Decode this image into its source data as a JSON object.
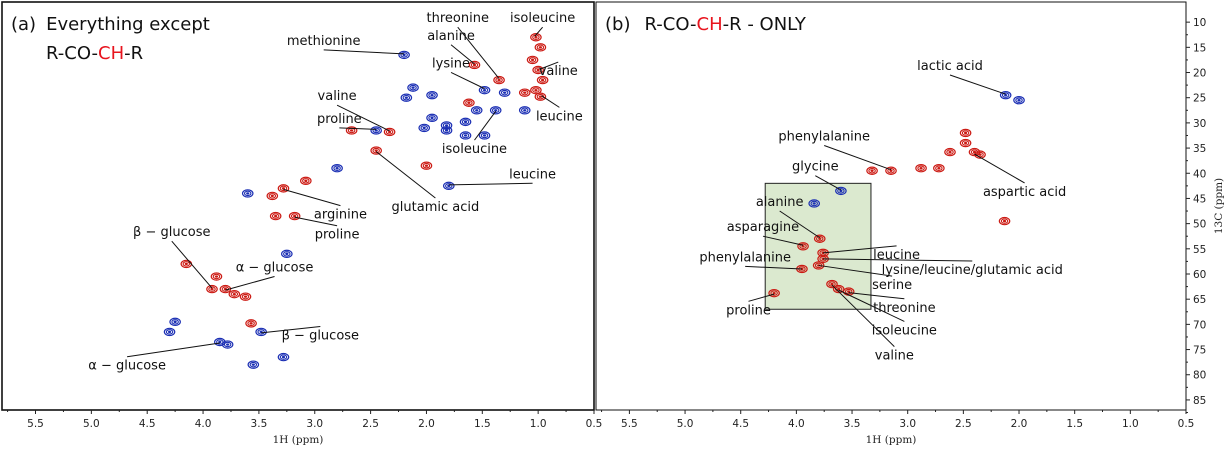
{
  "chart_data": [
    {
      "type": "scatter",
      "panel_label": "(a)",
      "title_line1": "Everything except",
      "title_parts": [
        "R-CO-",
        "CH",
        "-R"
      ],
      "xlabel": "1H (ppm)",
      "ylabel": "",
      "xlim": [
        5.8,
        0.5
      ],
      "ylim": [
        6,
        87
      ],
      "xticks": [
        5.5,
        5.0,
        4.5,
        4.0,
        3.5,
        3.0,
        2.5,
        2.0,
        1.5,
        1.0,
        0.5
      ],
      "colors": {
        "positive": "#cc1b14",
        "negative": "#1b2fb4",
        "highlight": "#e8141e"
      },
      "peaks": [
        {
          "x": 2.2,
          "y": 16.5,
          "sign": "negative"
        },
        {
          "x": 1.57,
          "y": 18.5,
          "sign": "positive"
        },
        {
          "x": 1.48,
          "y": 23.5,
          "sign": "negative"
        },
        {
          "x": 1.35,
          "y": 21.5,
          "sign": "positive"
        },
        {
          "x": 1.02,
          "y": 13.0,
          "sign": "positive"
        },
        {
          "x": 0.98,
          "y": 15.0,
          "sign": "positive"
        },
        {
          "x": 1.05,
          "y": 17.5,
          "sign": "positive"
        },
        {
          "x": 1.0,
          "y": 19.5,
          "sign": "positive"
        },
        {
          "x": 0.96,
          "y": 21.5,
          "sign": "positive"
        },
        {
          "x": 1.02,
          "y": 23.5,
          "sign": "positive"
        },
        {
          "x": 0.98,
          "y": 24.8,
          "sign": "positive"
        },
        {
          "x": 1.3,
          "y": 24.0,
          "sign": "negative"
        },
        {
          "x": 1.12,
          "y": 24.0,
          "sign": "positive"
        },
        {
          "x": 2.18,
          "y": 25.0,
          "sign": "negative"
        },
        {
          "x": 2.12,
          "y": 23.0,
          "sign": "negative"
        },
        {
          "x": 1.95,
          "y": 24.5,
          "sign": "negative"
        },
        {
          "x": 1.62,
          "y": 26.0,
          "sign": "positive"
        },
        {
          "x": 1.55,
          "y": 27.5,
          "sign": "negative"
        },
        {
          "x": 1.38,
          "y": 27.5,
          "sign": "negative"
        },
        {
          "x": 1.12,
          "y": 27.5,
          "sign": "negative"
        },
        {
          "x": 1.95,
          "y": 29.0,
          "sign": "negative"
        },
        {
          "x": 2.02,
          "y": 31.0,
          "sign": "negative"
        },
        {
          "x": 1.82,
          "y": 31.5,
          "sign": "negative"
        },
        {
          "x": 1.82,
          "y": 30.5,
          "sign": "negative"
        },
        {
          "x": 1.65,
          "y": 29.8,
          "sign": "negative"
        },
        {
          "x": 1.65,
          "y": 32.5,
          "sign": "negative"
        },
        {
          "x": 1.48,
          "y": 32.5,
          "sign": "negative"
        },
        {
          "x": 2.45,
          "y": 31.5,
          "sign": "negative"
        },
        {
          "x": 2.33,
          "y": 31.8,
          "sign": "positive"
        },
        {
          "x": 2.67,
          "y": 31.5,
          "sign": "positive"
        },
        {
          "x": 2.45,
          "y": 35.5,
          "sign": "positive"
        },
        {
          "x": 2.0,
          "y": 38.5,
          "sign": "positive"
        },
        {
          "x": 1.8,
          "y": 42.5,
          "sign": "negative"
        },
        {
          "x": 2.8,
          "y": 39.0,
          "sign": "negative"
        },
        {
          "x": 3.08,
          "y": 41.5,
          "sign": "positive"
        },
        {
          "x": 3.28,
          "y": 43.0,
          "sign": "positive"
        },
        {
          "x": 3.38,
          "y": 44.5,
          "sign": "positive"
        },
        {
          "x": 3.18,
          "y": 48.5,
          "sign": "positive"
        },
        {
          "x": 3.35,
          "y": 48.5,
          "sign": "positive"
        },
        {
          "x": 3.6,
          "y": 44.0,
          "sign": "negative"
        },
        {
          "x": 3.25,
          "y": 56.0,
          "sign": "negative"
        },
        {
          "x": 4.15,
          "y": 58.0,
          "sign": "positive"
        },
        {
          "x": 3.92,
          "y": 63.0,
          "sign": "positive"
        },
        {
          "x": 3.8,
          "y": 63.0,
          "sign": "positive"
        },
        {
          "x": 3.88,
          "y": 60.5,
          "sign": "positive"
        },
        {
          "x": 3.72,
          "y": 64.0,
          "sign": "positive"
        },
        {
          "x": 3.62,
          "y": 64.5,
          "sign": "positive"
        },
        {
          "x": 3.57,
          "y": 69.8,
          "sign": "positive"
        },
        {
          "x": 4.25,
          "y": 69.5,
          "sign": "negative"
        },
        {
          "x": 4.3,
          "y": 71.5,
          "sign": "negative"
        },
        {
          "x": 3.85,
          "y": 73.5,
          "sign": "negative"
        },
        {
          "x": 3.78,
          "y": 74.0,
          "sign": "negative"
        },
        {
          "x": 3.48,
          "y": 71.5,
          "sign": "negative"
        },
        {
          "x": 3.28,
          "y": 76.5,
          "sign": "negative"
        },
        {
          "x": 3.55,
          "y": 78.0,
          "sign": "negative"
        }
      ],
      "annotations": [
        {
          "text": "methionine",
          "lx": 2.92,
          "ly": 14.5,
          "anchor": "middle",
          "tx": 2.2,
          "ty": 16.3
        },
        {
          "text": "threonine",
          "lx": 1.72,
          "ly": 10.0,
          "anchor": "middle",
          "tx": 1.35,
          "ty": 21.2
        },
        {
          "text": "alanine",
          "lx": 1.78,
          "ly": 13.5,
          "anchor": "middle",
          "tx": 1.57,
          "ty": 18.3
        },
        {
          "text": "isoleucine",
          "lx": 0.96,
          "ly": 10.0,
          "anchor": "middle",
          "tx": 1.03,
          "ty": 12.8
        },
        {
          "text": "lysine",
          "lx": 1.78,
          "ly": 19.0,
          "anchor": "middle",
          "tx": 1.48,
          "ty": 23.2
        },
        {
          "text": "valine",
          "lx": 0.82,
          "ly": 20.5,
          "anchor": "middle",
          "tx": 0.98,
          "ty": 19.3
        },
        {
          "text": "leucine",
          "lx": 0.81,
          "ly": 29.5,
          "anchor": "middle",
          "tx": 0.97,
          "ty": 24.6
        },
        {
          "text": "valine",
          "lx": 2.8,
          "ly": 25.5,
          "anchor": "middle",
          "tx": 2.33,
          "ty": 31.6
        },
        {
          "text": "proline",
          "lx": 2.78,
          "ly": 30.0,
          "anchor": "middle",
          "tx": 2.45,
          "ty": 31.3
        },
        {
          "text": "isoleucine",
          "lx": 1.57,
          "ly": 36.0,
          "anchor": "middle",
          "tx": 1.38,
          "ty": 27.7
        },
        {
          "text": "leucine",
          "lx": 1.05,
          "ly": 41.0,
          "anchor": "middle",
          "tx": 1.8,
          "ty": 42.3
        },
        {
          "text": "glutamic acid",
          "lx": 1.92,
          "ly": 47.5,
          "anchor": "middle",
          "tx": 2.45,
          "ty": 35.7
        },
        {
          "text": "arginine",
          "lx": 2.77,
          "ly": 49.0,
          "anchor": "middle",
          "tx": 3.28,
          "ty": 43.2
        },
        {
          "text": "proline",
          "lx": 2.8,
          "ly": 53.0,
          "anchor": "middle",
          "tx": 3.18,
          "ty": 48.7
        },
        {
          "text": "β − glucose",
          "lx": 4.28,
          "ly": 52.5,
          "anchor": "middle",
          "tx": 3.92,
          "ty": 62.8
        },
        {
          "text": "α − glucose",
          "lx": 3.36,
          "ly": 59.5,
          "anchor": "middle",
          "tx": 3.8,
          "ty": 63.2
        },
        {
          "text": "β − glucose",
          "lx": 2.95,
          "ly": 73.0,
          "anchor": "middle",
          "tx": 3.48,
          "ty": 71.7
        },
        {
          "text": "α − glucose",
          "lx": 4.68,
          "ly": 79.0,
          "anchor": "middle",
          "tx": 3.85,
          "ty": 73.7
        }
      ]
    },
    {
      "type": "scatter",
      "panel_label": "(b)",
      "title_parts": [
        "R-CO-",
        "CH",
        "-R - ONLY"
      ],
      "xlabel": "1H (ppm)",
      "ylabel": "13C (ppm)",
      "xlim": [
        5.8,
        0.5
      ],
      "ylim": [
        6,
        87
      ],
      "xticks": [
        5.5,
        5.0,
        4.5,
        4.0,
        3.5,
        3.0,
        2.5,
        2.0,
        1.5,
        1.0,
        0.5
      ],
      "yticks": [
        10,
        15,
        20,
        25,
        30,
        35,
        40,
        45,
        50,
        55,
        60,
        65,
        70,
        75,
        80,
        85
      ],
      "highlight_box": {
        "x_range": [
          4.28,
          3.33
        ],
        "y_range": [
          42,
          67
        ],
        "fill": "#dbe9cf"
      },
      "peaks": [
        {
          "x": 2.12,
          "y": 24.5,
          "sign": "negative"
        },
        {
          "x": 2.0,
          "y": 25.5,
          "sign": "negative"
        },
        {
          "x": 3.32,
          "y": 39.5,
          "sign": "positive"
        },
        {
          "x": 3.15,
          "y": 39.5,
          "sign": "positive"
        },
        {
          "x": 2.88,
          "y": 39.0,
          "sign": "positive"
        },
        {
          "x": 2.72,
          "y": 39.0,
          "sign": "positive"
        },
        {
          "x": 2.48,
          "y": 32.0,
          "sign": "positive"
        },
        {
          "x": 2.48,
          "y": 34.0,
          "sign": "positive"
        },
        {
          "x": 2.4,
          "y": 35.8,
          "sign": "positive"
        },
        {
          "x": 2.35,
          "y": 36.3,
          "sign": "positive"
        },
        {
          "x": 2.62,
          "y": 35.8,
          "sign": "positive"
        },
        {
          "x": 2.13,
          "y": 49.5,
          "sign": "positive"
        },
        {
          "x": 3.6,
          "y": 43.5,
          "sign": "negative"
        },
        {
          "x": 3.84,
          "y": 46.0,
          "sign": "negative"
        },
        {
          "x": 3.79,
          "y": 53.0,
          "sign": "positive"
        },
        {
          "x": 3.94,
          "y": 54.5,
          "sign": "positive"
        },
        {
          "x": 3.76,
          "y": 55.8,
          "sign": "positive"
        },
        {
          "x": 3.76,
          "y": 57.0,
          "sign": "positive"
        },
        {
          "x": 3.8,
          "y": 58.3,
          "sign": "positive"
        },
        {
          "x": 3.95,
          "y": 59.0,
          "sign": "positive"
        },
        {
          "x": 3.68,
          "y": 62.0,
          "sign": "positive"
        },
        {
          "x": 3.62,
          "y": 63.0,
          "sign": "positive"
        },
        {
          "x": 3.53,
          "y": 63.5,
          "sign": "positive"
        },
        {
          "x": 4.2,
          "y": 63.8,
          "sign": "positive"
        }
      ],
      "annotations": [
        {
          "text": "lactic acid",
          "lx": 2.62,
          "ly": 19.5,
          "anchor": "middle",
          "tx": 2.12,
          "ty": 24.3
        },
        {
          "text": "phenylalanine",
          "lx": 3.75,
          "ly": 33.5,
          "anchor": "middle",
          "tx": 3.15,
          "ty": 39.3
        },
        {
          "text": "glycine",
          "lx": 3.83,
          "ly": 39.5,
          "anchor": "middle",
          "tx": 3.6,
          "ty": 43.3
        },
        {
          "text": "aspartic acid",
          "lx": 1.95,
          "ly": 44.5,
          "anchor": "middle",
          "tx": 2.4,
          "ty": 36.2
        },
        {
          "text": "alanine",
          "lx": 4.15,
          "ly": 46.5,
          "anchor": "middle",
          "tx": 3.79,
          "ty": 52.8
        },
        {
          "text": "asparagine",
          "lx": 4.3,
          "ly": 51.5,
          "anchor": "middle",
          "tx": 3.94,
          "ty": 54.3
        },
        {
          "text": "leucine",
          "lx": 3.1,
          "ly": 57.0,
          "anchor": "middle",
          "tx": 3.76,
          "ty": 55.8
        },
        {
          "text": "lysine/leucine/glutamic acid",
          "lx": 2.42,
          "ly": 60.0,
          "anchor": "middle",
          "tx": 3.76,
          "ty": 57.0
        },
        {
          "text": "phenylalanine",
          "lx": 4.46,
          "ly": 57.5,
          "anchor": "middle",
          "tx": 3.95,
          "ty": 59.0
        },
        {
          "text": "serine",
          "lx": 3.14,
          "ly": 63.0,
          "anchor": "middle",
          "tx": 3.8,
          "ty": 58.3
        },
        {
          "text": "proline",
          "lx": 4.43,
          "ly": 68.0,
          "anchor": "middle",
          "tx": 4.2,
          "ty": 64.0
        },
        {
          "text": "threonine",
          "lx": 3.03,
          "ly": 67.5,
          "anchor": "middle",
          "tx": 3.53,
          "ty": 63.7
        },
        {
          "text": "isoleucine",
          "lx": 3.03,
          "ly": 72.0,
          "anchor": "middle",
          "tx": 3.62,
          "ty": 63.2
        },
        {
          "text": "valine",
          "lx": 3.12,
          "ly": 77.0,
          "anchor": "middle",
          "tx": 3.68,
          "ty": 62.2
        }
      ]
    }
  ]
}
